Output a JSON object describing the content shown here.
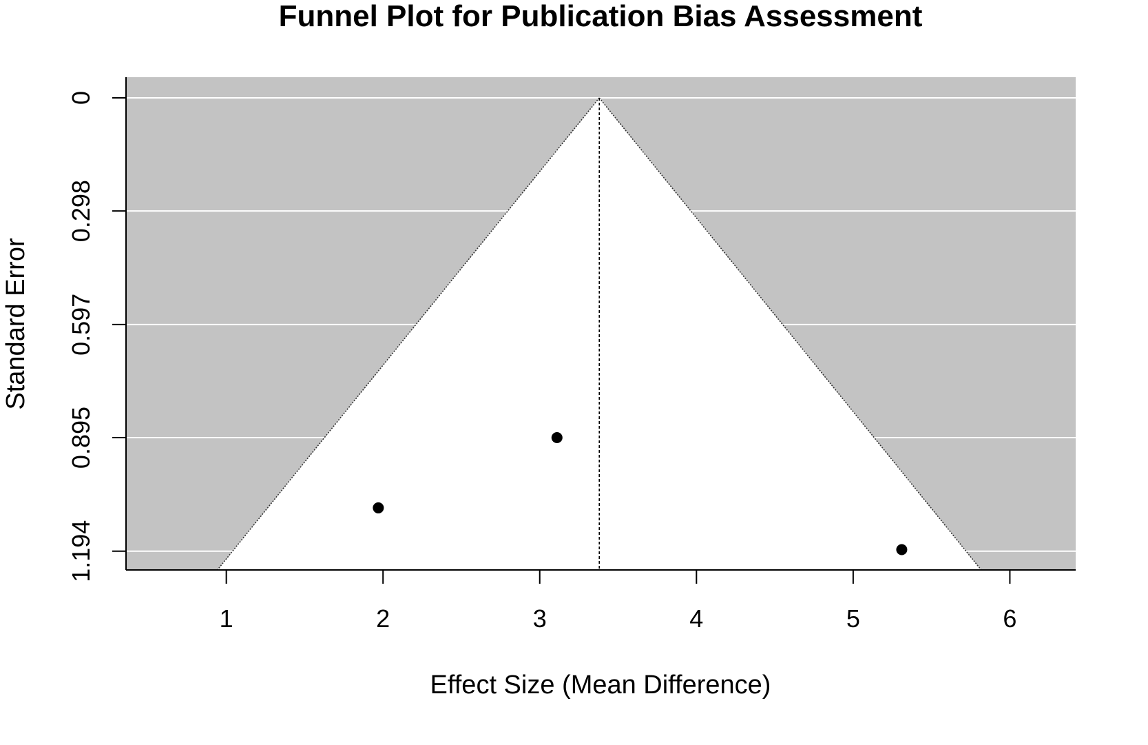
{
  "chart_data": {
    "type": "scatter",
    "title": "Funnel Plot for Publication Bias Assessment",
    "xlabel": "Effect Size (Mean Difference)",
    "ylabel": "Standard Error",
    "xlim": [
      0.36,
      6.42
    ],
    "ylim": [
      0,
      1.2435
    ],
    "y_inverted": true,
    "x_ticks": [
      1,
      2,
      3,
      4,
      5,
      6
    ],
    "x_tick_labels": [
      "1",
      "2",
      "3",
      "4",
      "5",
      "6"
    ],
    "y_ticks": [
      0,
      0.298,
      0.597,
      0.895,
      1.194
    ],
    "y_tick_labels": [
      "0",
      "0.298",
      "0.597",
      "0.895",
      "1.194"
    ],
    "grid": "horizontal",
    "pooled_estimate": 3.38,
    "funnel_multiplier": 1.96,
    "points": [
      {
        "x": 1.97,
        "y": 1.08
      },
      {
        "x": 3.11,
        "y": 0.895
      },
      {
        "x": 5.31,
        "y": 1.19
      }
    ],
    "colors": {
      "panel": "#c3c3c3",
      "funnel": "#ffffff",
      "grid": "#ffffff",
      "points": "#000000"
    }
  }
}
